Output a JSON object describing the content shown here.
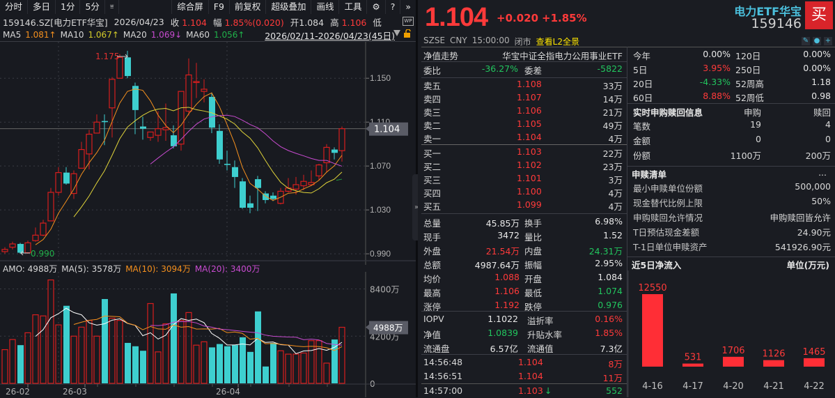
{
  "toolbar": {
    "left_tabs": [
      "分时",
      "多日",
      "1分",
      "5分"
    ],
    "dropdown_icon": "filter-dropdown-icon",
    "right_items": [
      "综合屏",
      "F9",
      "前复权",
      "超级叠加",
      "画线",
      "工具"
    ],
    "icons": [
      "gear-icon",
      "help-icon",
      "expand-icon"
    ]
  },
  "info": {
    "symbol": "159146.SZ[电力ETF华宝]",
    "date": "2026/04/23",
    "close_label": "收",
    "close": "1.104",
    "change_label": "幅",
    "change": "1.85%(0.020)",
    "open_label": "开",
    "open": "1.084",
    "high_label": "高",
    "high": "1.106",
    "low_label": "低"
  },
  "ma": {
    "ma5_label": "MA5",
    "ma5": "1.081↑",
    "ma10_label": "MA10",
    "ma10": "1.067↑",
    "ma20_label": "MA20",
    "ma20": "1.069↓",
    "ma60_label": "MA60",
    "ma60": "1.056↑",
    "date_range": "2026/02/11-2026/04/23(45日)"
  },
  "kchart": {
    "y_ticks": [
      "1.150",
      "1.110",
      "1.070",
      "1.030",
      "0.990"
    ],
    "y_values": [
      1.15,
      1.11,
      1.07,
      1.03,
      0.99
    ],
    "current_price_tag": "1.104",
    "high_mark": "1.175",
    "low_mark": "0.990",
    "colors": {
      "up": "#d81e1e",
      "down": "#3ecfcf",
      "ma5": "#f5901e",
      "ma10": "#e0d43a",
      "ma20": "#c84bd0",
      "ma60": "#20a040"
    },
    "candles": [
      [
        0.992,
        0.994,
        0.996,
        0.99
      ],
      [
        0.996,
        0.999,
        1.001,
        0.994
      ],
      [
        0.999,
        0.991,
        1.0,
        0.99
      ],
      [
        0.991,
        1.0,
        1.002,
        0.99
      ],
      [
        1.002,
        1.007,
        1.014,
        1.001
      ],
      [
        1.007,
        1.018,
        1.021,
        1.006
      ],
      [
        1.02,
        1.046,
        1.05,
        1.02
      ],
      [
        1.046,
        1.064,
        1.069,
        1.043
      ],
      [
        1.064,
        1.054,
        1.069,
        1.053
      ],
      [
        1.045,
        1.063,
        1.066,
        1.04
      ],
      [
        1.068,
        1.085,
        1.092,
        1.068
      ],
      [
        1.081,
        1.099,
        1.103,
        1.067
      ],
      [
        1.1,
        1.11,
        1.117,
        1.1
      ],
      [
        1.111,
        1.11,
        1.117,
        1.089
      ],
      [
        1.123,
        1.149,
        1.151,
        1.096
      ],
      [
        1.15,
        1.169,
        1.172,
        1.15
      ],
      [
        1.169,
        1.152,
        1.175,
        1.15
      ],
      [
        1.143,
        1.121,
        1.146,
        1.099
      ],
      [
        1.106,
        1.104,
        1.115,
        1.094
      ],
      [
        1.096,
        1.101,
        1.097,
        1.093
      ],
      [
        1.098,
        1.104,
        1.12,
        1.092
      ],
      [
        1.103,
        1.105,
        1.127,
        1.093
      ],
      [
        1.098,
        1.088,
        1.107,
        1.086
      ],
      [
        1.09,
        1.138,
        1.135,
        1.084
      ],
      [
        1.12,
        1.153,
        1.168,
        1.116
      ],
      [
        1.147,
        1.147,
        1.164,
        1.132
      ],
      [
        1.138,
        1.14,
        1.149,
        1.128
      ],
      [
        1.133,
        1.105,
        1.137,
        1.1
      ],
      [
        1.102,
        1.076,
        1.108,
        1.072
      ],
      [
        1.072,
        1.071,
        1.084,
        1.066
      ],
      [
        1.069,
        1.06,
        1.075,
        1.05
      ],
      [
        1.056,
        1.032,
        1.059,
        1.031
      ],
      [
        1.036,
        1.032,
        1.043,
        1.027
      ],
      [
        1.058,
        1.05,
        1.061,
        1.029
      ],
      [
        1.045,
        1.039,
        1.047,
        1.036
      ],
      [
        1.043,
        1.04,
        1.046,
        1.038
      ],
      [
        1.036,
        1.047,
        1.05,
        1.035
      ],
      [
        1.047,
        1.05,
        1.059,
        1.046
      ],
      [
        1.049,
        1.053,
        1.06,
        1.044
      ],
      [
        1.052,
        1.056,
        1.062,
        1.048
      ],
      [
        1.053,
        1.055,
        1.066,
        1.052
      ],
      [
        1.061,
        1.071,
        1.072,
        1.057
      ],
      [
        1.073,
        1.087,
        1.09,
        1.064
      ],
      [
        1.085,
        1.082,
        1.087,
        1.076
      ],
      [
        1.084,
        1.104,
        1.106,
        1.074
      ]
    ]
  },
  "volume": {
    "label": "AMO:",
    "amo": "4988万",
    "ma5_label": "MA(5):",
    "ma5": "3578万",
    "ma10_label": "MA(10):",
    "ma10": "3094万",
    "ma20_label": "MA(20):",
    "ma20": "3400万",
    "y_ticks": [
      "8400万",
      "4200万",
      "0"
    ],
    "current_tag": "4988万",
    "x_labels": [
      "26-02",
      "26-03",
      "26-04"
    ]
  },
  "quote": {
    "price": "1.104",
    "change": "+0.020",
    "change_pct": "+1.85%",
    "name": "电力ETF华宝",
    "code": "159146",
    "buy_label": "买",
    "exchange": "SZSE",
    "currency": "CNY",
    "time": "15:00:00",
    "status": "闭市",
    "l2_link": "查看L2全景",
    "mini_icons": [
      "edit-icon",
      "bell-icon",
      "add-icon"
    ]
  },
  "orderbook": {
    "nav_trend": "净值走势",
    "fund_name": "华宝中证全指电力公用事业ETF",
    "weibi_label": "委比",
    "weibi": "-36.27%",
    "weicha_label": "委差",
    "weicha": "-5822",
    "asks": [
      {
        "label": "卖五",
        "price": "1.108",
        "vol": "33万"
      },
      {
        "label": "卖四",
        "price": "1.107",
        "vol": "14万"
      },
      {
        "label": "卖三",
        "price": "1.106",
        "vol": "21万"
      },
      {
        "label": "卖二",
        "price": "1.105",
        "vol": "49万"
      },
      {
        "label": "卖一",
        "price": "1.104",
        "vol": "4万"
      }
    ],
    "bids": [
      {
        "label": "买一",
        "price": "1.103",
        "vol": "22万"
      },
      {
        "label": "买二",
        "price": "1.102",
        "vol": "23万"
      },
      {
        "label": "买三",
        "price": "1.101",
        "vol": "3万"
      },
      {
        "label": "买四",
        "price": "1.100",
        "vol": "4万"
      },
      {
        "label": "买五",
        "price": "1.099",
        "vol": "4万"
      }
    ]
  },
  "stats": [
    {
      "l1": "总量",
      "v1": "45.85万",
      "c1": "white",
      "l2": "换手",
      "v2": "6.98%",
      "c2": "white"
    },
    {
      "l1": "现手",
      "v1": "3472",
      "c1": "white",
      "l2": "量比",
      "v2": "1.52",
      "c2": "white"
    },
    {
      "l1": "外盘",
      "v1": "21.54万",
      "c1": "red",
      "l2": "内盘",
      "v2": "24.31万",
      "c2": "green"
    },
    {
      "l1": "总额",
      "v1": "4987.64万",
      "c1": "white",
      "l2": "振幅",
      "v2": "2.95%",
      "c2": "white"
    },
    {
      "l1": "均价",
      "v1": "1.088",
      "c1": "red",
      "l2": "开盘",
      "v2": "1.084",
      "c2": "white"
    },
    {
      "l1": "最高",
      "v1": "1.106",
      "c1": "red",
      "l2": "最低",
      "v2": "1.074",
      "c2": "green"
    },
    {
      "l1": "涨停",
      "v1": "1.192",
      "c1": "red",
      "l2": "跌停",
      "v2": "0.976",
      "c2": "green"
    }
  ],
  "iopv": [
    {
      "l1": "IOPV",
      "v1": "1.1022",
      "c1": "white",
      "l2": "溢折率",
      "v2": "0.16%",
      "c2": "red"
    },
    {
      "l1": "净值",
      "v1": "1.0839",
      "c1": "green",
      "l2": "升贴水率",
      "v2": "1.85%",
      "c2": "red"
    },
    {
      "l1": "流通盘",
      "v1": "6.57亿",
      "c1": "white",
      "l2": "流通值",
      "v2": "7.3亿",
      "c2": "white"
    }
  ],
  "ticks": [
    {
      "time": "14:56:48",
      "price": "1.104",
      "vol": "8万",
      "vc": "red",
      "arrow": ""
    },
    {
      "time": "14:56:51",
      "price": "1.104",
      "vol": "11万",
      "vc": "red",
      "arrow": ""
    },
    {
      "time": "14:57:00",
      "price": "1.103",
      "vol": "552",
      "vc": "green",
      "arrow": "↓"
    }
  ],
  "returns": [
    {
      "l1": "今年",
      "v1": "0.00%",
      "c1": "white",
      "l2": "120日",
      "v2": "0.00%"
    },
    {
      "l1": "5日",
      "v1": "3.95%",
      "c1": "red",
      "l2": "250日",
      "v2": "0.00%"
    },
    {
      "l1": "20日",
      "v1": "-4.33%",
      "c1": "green",
      "l2": "52周高",
      "v2": "1.18"
    },
    {
      "l1": "60日",
      "v1": "8.88%",
      "c1": "red",
      "l2": "52周低",
      "v2": "0.98"
    }
  ],
  "creation": {
    "title": "实时申购赎回信息",
    "col1": "申购",
    "col2": "赎回",
    "rows": [
      {
        "label": "笔数",
        "sub": "19",
        "red": "4"
      },
      {
        "label": "金额",
        "sub": "0",
        "red": "0"
      },
      {
        "label": "份额",
        "sub": "1100万",
        "red": "200万"
      }
    ]
  },
  "pcf": {
    "title": "申赎清单",
    "more": "...",
    "rows": [
      {
        "label": "最小申赎单位份额",
        "value": "500,000"
      },
      {
        "label": "现金替代比例上限",
        "value": "50%"
      },
      {
        "label": "申购赎回允许情况",
        "value": "申购赎回皆允许"
      },
      {
        "label": "T日预估现金差额",
        "value": "24.90元"
      },
      {
        "label": "T-1日单位申赎资产",
        "value": "541926.90元"
      }
    ]
  },
  "netflow": {
    "title": "近5日净流入",
    "unit": "单位(万元)"
  },
  "chart_data": {
    "type": "bar",
    "title": "近5日净流入",
    "categories": [
      "4-16",
      "4-17",
      "4-20",
      "4-21",
      "4-22"
    ],
    "values": [
      12550,
      531,
      1706,
      1126,
      1465
    ],
    "ylabel": "单位(万元)",
    "color": "#ff2e36"
  }
}
